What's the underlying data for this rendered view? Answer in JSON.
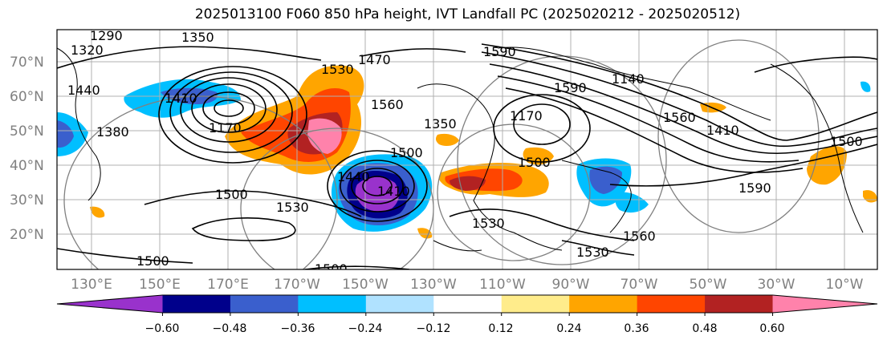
{
  "title": "2025013100 F060 850 hPa height, IVT Landfall PC (2025020212 - 2025020512)",
  "map": {
    "lat_labels": [
      "70°N",
      "60°N",
      "50°N",
      "40°N",
      "30°N",
      "20°N"
    ],
    "lon_labels": [
      "130°E",
      "150°E",
      "170°E",
      "170°W",
      "150°W",
      "130°W",
      "110°W",
      "90°W",
      "70°W",
      "50°W",
      "30°W",
      "10°W"
    ],
    "contour_labels": [
      "1290",
      "1320",
      "1350",
      "1440",
      "1380",
      "1410",
      "1170",
      "1530",
      "1470",
      "1500",
      "1530",
      "1560",
      "1410",
      "1440",
      "1350",
      "1590",
      "1170",
      "1590",
      "1500",
      "1500",
      "1530",
      "1560",
      "1590",
      "1500",
      "1500",
      "1530",
      "1560",
      "1140",
      "1410",
      "1500"
    ]
  },
  "colorbar": {
    "tick_labels": [
      "−0.60",
      "−0.48",
      "−0.36",
      "−0.24",
      "−0.12",
      "0.12",
      "0.24",
      "0.36",
      "0.48",
      "0.60"
    ],
    "colors": [
      "#9932cc",
      "#00008b",
      "#3a5fcd",
      "#00bfff",
      "#b0e2ff",
      "#ffffff",
      "#ffec8b",
      "#ffa500",
      "#ff4500",
      "#b22222",
      "#ff82ab"
    ]
  }
}
